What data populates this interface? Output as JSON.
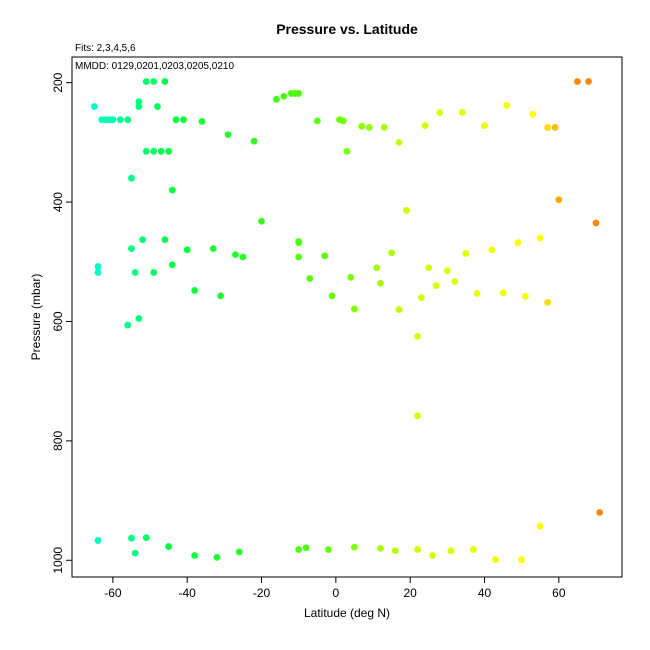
{
  "chart_data": {
    "type": "scatter",
    "title": "Pressure vs. Latitude",
    "annotations": [
      "Fits: 2,3,4,5,6",
      "MMDD: 0129,0201,0203,0205,0210"
    ],
    "xlabel": "Latitude (deg N)",
    "ylabel": "Pressure (mbar)",
    "xlim": [
      -71,
      77
    ],
    "ylim": [
      1028,
      157
    ],
    "y_reversed": true,
    "xticks": [
      -60,
      -40,
      -20,
      0,
      20,
      40,
      60
    ],
    "yticks": [
      200,
      400,
      600,
      800,
      1000
    ],
    "grid": false,
    "legend": "none",
    "color_scale": [
      {
        "lat": -65,
        "color": "#00ffcc"
      },
      {
        "lat": -45,
        "color": "#00ff44"
      },
      {
        "lat": 0,
        "color": "#66ff00"
      },
      {
        "lat": 20,
        "color": "#ccff00"
      },
      {
        "lat": 55,
        "color": "#ffff00"
      },
      {
        "lat": 62,
        "color": "#ff8800"
      }
    ],
    "points": [
      [
        -65,
        240
      ],
      [
        -63,
        262
      ],
      [
        -62,
        262
      ],
      [
        -61,
        262
      ],
      [
        -60,
        262
      ],
      [
        -58,
        262
      ],
      [
        -56,
        262
      ],
      [
        -53,
        232
      ],
      [
        -53,
        240
      ],
      [
        -51,
        198
      ],
      [
        -48,
        240
      ],
      [
        -49,
        198
      ],
      [
        -46,
        198
      ],
      [
        -43,
        262
      ],
      [
        -41,
        262
      ],
      [
        -51,
        315
      ],
      [
        -49,
        315
      ],
      [
        -47,
        315
      ],
      [
        -45,
        315
      ],
      [
        -55,
        360
      ],
      [
        -44,
        380
      ],
      [
        -36,
        265
      ],
      [
        -29,
        287
      ],
      [
        -22,
        298
      ],
      [
        -16,
        228
      ],
      [
        -14,
        223
      ],
      [
        -12,
        218
      ],
      [
        -11,
        218
      ],
      [
        -10,
        218
      ],
      [
        -5,
        264
      ],
      [
        1,
        262
      ],
      [
        2,
        264
      ],
      [
        3,
        315
      ],
      [
        7,
        273
      ],
      [
        9,
        275
      ],
      [
        13,
        275
      ],
      [
        17,
        300
      ],
      [
        24,
        272
      ],
      [
        28,
        250
      ],
      [
        34,
        250
      ],
      [
        40,
        272
      ],
      [
        46,
        238
      ],
      [
        53,
        253
      ],
      [
        57,
        275
      ],
      [
        59,
        275
      ],
      [
        65,
        198
      ],
      [
        68,
        198
      ],
      [
        60,
        396
      ],
      [
        70,
        435
      ],
      [
        19,
        414
      ],
      [
        -20,
        432
      ],
      [
        -64,
        508
      ],
      [
        -64,
        518
      ],
      [
        -55,
        478
      ],
      [
        -52,
        463
      ],
      [
        -46,
        463
      ],
      [
        -40,
        480
      ],
      [
        -33,
        478
      ],
      [
        -27,
        488
      ],
      [
        -25,
        492
      ],
      [
        -10,
        466
      ],
      [
        -10,
        468
      ],
      [
        -10,
        492
      ],
      [
        -3,
        490
      ],
      [
        -7,
        528
      ],
      [
        4,
        526
      ],
      [
        11,
        510
      ],
      [
        12,
        536
      ],
      [
        15,
        485
      ],
      [
        25,
        510
      ],
      [
        27,
        540
      ],
      [
        30,
        515
      ],
      [
        32,
        533
      ],
      [
        35,
        486
      ],
      [
        42,
        480
      ],
      [
        49,
        468
      ],
      [
        55,
        460
      ],
      [
        -54,
        518
      ],
      [
        -49,
        518
      ],
      [
        -44,
        505
      ],
      [
        -38,
        548
      ],
      [
        -31,
        557
      ],
      [
        -1,
        557
      ],
      [
        5,
        579
      ],
      [
        17,
        580
      ],
      [
        23,
        560
      ],
      [
        38,
        553
      ],
      [
        45,
        552
      ],
      [
        51,
        558
      ],
      [
        57,
        568
      ],
      [
        -56,
        606
      ],
      [
        -53,
        595
      ],
      [
        22,
        625
      ],
      [
        22,
        758
      ],
      [
        -64,
        967
      ],
      [
        -55,
        963
      ],
      [
        -51,
        962
      ],
      [
        -45,
        977
      ],
      [
        -38,
        992
      ],
      [
        -32,
        995
      ],
      [
        -26,
        986
      ],
      [
        -10,
        982
      ],
      [
        -8,
        979
      ],
      [
        -2,
        982
      ],
      [
        5,
        978
      ],
      [
        12,
        980
      ],
      [
        16,
        984
      ],
      [
        22,
        982
      ],
      [
        26,
        992
      ],
      [
        31,
        984
      ],
      [
        37,
        982
      ],
      [
        43,
        999
      ],
      [
        50,
        999
      ],
      [
        55,
        943
      ],
      [
        71,
        920
      ],
      [
        -54,
        988
      ]
    ]
  }
}
